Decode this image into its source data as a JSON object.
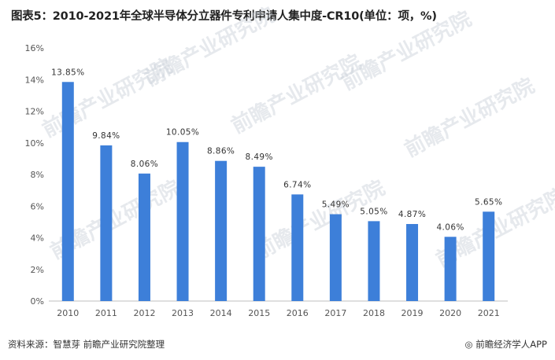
{
  "title": "图表5：2010-2021年全球半导体分立器件专利申请人集中度-CR10(单位：项，%)",
  "source": "资料来源：智慧芽 前瞻产业研究院整理",
  "credit": "前瞻经济学人APP",
  "watermark": "前瞻产业研究院",
  "colors": {
    "bar": "#3d7fd9",
    "axis": "#bfbfbf",
    "text": "#333333"
  },
  "chart_data": {
    "type": "bar",
    "title": "图表5：2010-2021年全球半导体分立器件专利申请人集中度-CR10(单位：项，%)",
    "xlabel": "",
    "ylabel": "",
    "categories": [
      "2010",
      "2011",
      "2012",
      "2013",
      "2014",
      "2015",
      "2016",
      "2017",
      "2018",
      "2019",
      "2020",
      "2021"
    ],
    "values": [
      13.85,
      9.84,
      8.06,
      10.05,
      8.86,
      8.49,
      6.74,
      5.49,
      5.05,
      4.87,
      4.06,
      5.65
    ],
    "value_labels": [
      "13.85%",
      "9.84%",
      "8.06%",
      "10.05%",
      "8.86%",
      "8.49%",
      "6.74%",
      "5.49%",
      "5.05%",
      "4.87%",
      "4.06%",
      "5.65%"
    ],
    "y_ticks": [
      0,
      2,
      4,
      6,
      8,
      10,
      12,
      14,
      16
    ],
    "y_tick_labels": [
      "0%",
      "2%",
      "4%",
      "6%",
      "8%",
      "10%",
      "12%",
      "14%",
      "16%"
    ],
    "ylim": [
      0,
      16
    ],
    "grid": false,
    "legend": "none"
  }
}
